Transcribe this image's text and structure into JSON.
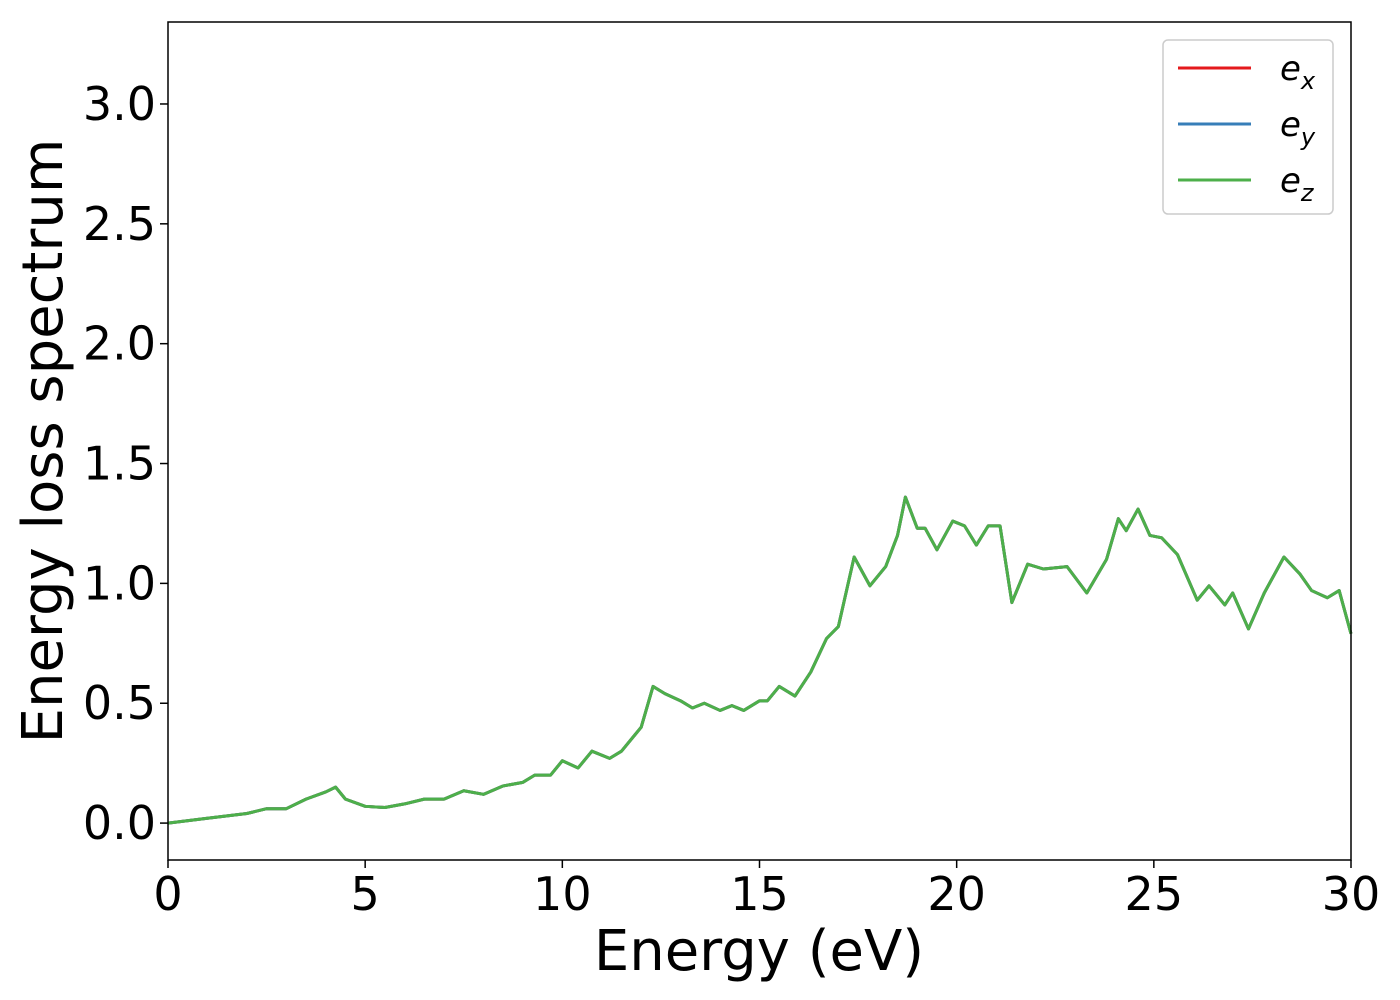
{
  "chart_data": {
    "type": "line",
    "xlabel": "Energy (eV)",
    "ylabel": "Energy loss spectrum",
    "x": [
      0,
      1,
      2,
      2.5,
      3,
      3.5,
      4,
      4.25,
      4.5,
      5,
      5.5,
      6,
      6.5,
      7,
      7.5,
      8,
      8.5,
      9,
      9.3,
      9.7,
      10,
      10.4,
      10.75,
      11.2,
      11.5,
      12,
      12.3,
      12.6,
      13,
      13.3,
      13.6,
      14,
      14.3,
      14.6,
      15,
      15.2,
      15.5,
      15.9,
      16.3,
      16.7,
      17,
      17.4,
      17.8,
      18.2,
      18.5,
      18.7,
      19,
      19.2,
      19.5,
      19.9,
      20.2,
      20.5,
      20.8,
      21.1,
      21.4,
      21.8,
      22.2,
      22.8,
      23.3,
      23.8,
      24.1,
      24.3,
      24.6,
      24.9,
      25.2,
      25.6,
      26.1,
      26.4,
      26.8,
      27,
      27.4,
      27.8,
      28.3,
      28.7,
      29,
      29.4,
      29.7,
      30
    ],
    "series": [
      {
        "name": "e_x",
        "color": "#e41a1c",
        "values": [
          0,
          0.02,
          0.04,
          0.06,
          0.06,
          0.1,
          0.13,
          0.15,
          0.1,
          0.07,
          0.065,
          0.08,
          0.1,
          0.1,
          0.135,
          0.12,
          0.155,
          0.17,
          0.2,
          0.2,
          0.26,
          0.23,
          0.3,
          0.27,
          0.3,
          0.4,
          0.57,
          0.54,
          0.51,
          0.48,
          0.5,
          0.47,
          0.49,
          0.47,
          0.51,
          0.51,
          0.57,
          0.53,
          0.63,
          0.77,
          0.82,
          1.11,
          0.99,
          1.07,
          1.2,
          1.36,
          1.23,
          1.23,
          1.14,
          1.26,
          1.24,
          1.16,
          1.24,
          1.24,
          0.92,
          1.08,
          1.06,
          1.07,
          0.96,
          1.1,
          1.27,
          1.22,
          1.31,
          1.2,
          1.19,
          1.12,
          0.93,
          0.99,
          0.91,
          0.96,
          0.81,
          0.96,
          1.11,
          1.04,
          0.97,
          0.94,
          0.97,
          0.79
        ]
      },
      {
        "name": "e_y",
        "color": "#377eb8",
        "values": [
          0,
          0.02,
          0.04,
          0.06,
          0.06,
          0.1,
          0.13,
          0.15,
          0.1,
          0.07,
          0.065,
          0.08,
          0.1,
          0.1,
          0.135,
          0.12,
          0.155,
          0.17,
          0.2,
          0.2,
          0.26,
          0.23,
          0.3,
          0.27,
          0.3,
          0.4,
          0.57,
          0.54,
          0.51,
          0.48,
          0.5,
          0.47,
          0.49,
          0.47,
          0.51,
          0.51,
          0.57,
          0.53,
          0.63,
          0.77,
          0.82,
          1.11,
          0.99,
          1.07,
          1.2,
          1.36,
          1.23,
          1.23,
          1.14,
          1.26,
          1.24,
          1.16,
          1.24,
          1.24,
          0.92,
          1.08,
          1.06,
          1.07,
          0.96,
          1.1,
          1.27,
          1.22,
          1.31,
          1.2,
          1.19,
          1.12,
          0.93,
          0.99,
          0.91,
          0.96,
          0.81,
          0.96,
          1.11,
          1.04,
          0.97,
          0.94,
          0.97,
          0.79
        ]
      },
      {
        "name": "e_z",
        "color": "#4daf4a",
        "values": [
          0,
          0.02,
          0.04,
          0.06,
          0.06,
          0.1,
          0.13,
          0.15,
          0.1,
          0.07,
          0.065,
          0.08,
          0.1,
          0.1,
          0.135,
          0.12,
          0.155,
          0.17,
          0.2,
          0.2,
          0.26,
          0.23,
          0.3,
          0.27,
          0.3,
          0.4,
          0.57,
          0.54,
          0.51,
          0.48,
          0.5,
          0.47,
          0.49,
          0.47,
          0.51,
          0.51,
          0.57,
          0.53,
          0.63,
          0.77,
          0.82,
          1.11,
          0.99,
          1.07,
          1.2,
          1.36,
          1.23,
          1.23,
          1.14,
          1.26,
          1.24,
          1.16,
          1.24,
          1.24,
          0.92,
          1.08,
          1.06,
          1.07,
          0.96,
          1.1,
          1.27,
          1.22,
          1.31,
          1.2,
          1.19,
          1.12,
          0.93,
          0.99,
          0.91,
          0.96,
          0.81,
          0.96,
          1.11,
          1.04,
          0.97,
          0.94,
          0.97,
          0.79
        ]
      }
    ],
    "xlim": [
      0,
      30
    ],
    "xticks": [
      0,
      5,
      10,
      15,
      20,
      25,
      30
    ],
    "ylim": [
      -0.154,
      3.342
    ],
    "yticks": [
      {
        "value": 0,
        "label": "0.0"
      },
      0.5,
      {
        "value": 1,
        "label": "1.0"
      },
      1.5,
      {
        "value": 2,
        "label": "2.0"
      },
      2.5,
      {
        "value": 3,
        "label": "3.0"
      }
    ],
    "grid": false,
    "legend": "upper right"
  }
}
